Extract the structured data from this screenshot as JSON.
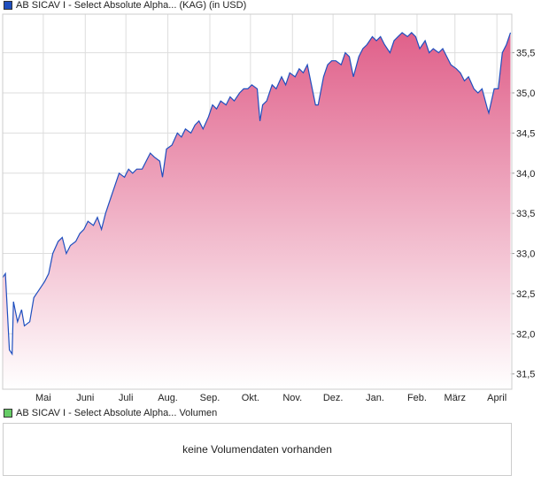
{
  "price_legend": {
    "label": "AB SICAV I - Select Absolute Alpha... (KAG) (in USD)",
    "color": "#1f4fbf"
  },
  "volume_legend": {
    "label": "AB SICAV I - Select Absolute Alpha... Volumen",
    "color": "#66cc66"
  },
  "volume_message": "keine Volumendaten vorhanden",
  "chart_data": {
    "type": "area",
    "title": "AB SICAV I - Select Absolute Alpha... (KAG) (in USD)",
    "xlabel": "",
    "ylabel": "",
    "xlim": [
      0,
      376
    ],
    "ylim": [
      31.31,
      35.98
    ],
    "grid": true,
    "x_ticks": [
      {
        "day": 30,
        "label": "Mai"
      },
      {
        "day": 61,
        "label": "Juni"
      },
      {
        "day": 91,
        "label": "Juli"
      },
      {
        "day": 122,
        "label": "Aug."
      },
      {
        "day": 153,
        "label": "Sep."
      },
      {
        "day": 183,
        "label": "Okt."
      },
      {
        "day": 214,
        "label": "Nov."
      },
      {
        "day": 244,
        "label": "Dez."
      },
      {
        "day": 275,
        "label": "Jan."
      },
      {
        "day": 306,
        "label": "Feb."
      },
      {
        "day": 334,
        "label": "März"
      },
      {
        "day": 365,
        "label": "April"
      }
    ],
    "y_ticks": [
      {
        "value": 31.5,
        "label": "31,5"
      },
      {
        "value": 32.0,
        "label": "32,0"
      },
      {
        "value": 32.5,
        "label": "32,5"
      },
      {
        "value": 33.0,
        "label": "33,0"
      },
      {
        "value": 33.5,
        "label": "33,5"
      },
      {
        "value": 34.0,
        "label": "34,0"
      },
      {
        "value": 34.5,
        "label": "34,5"
      },
      {
        "value": 35.0,
        "label": "35,0"
      },
      {
        "value": 35.5,
        "label": "35,5"
      }
    ],
    "x": [
      0,
      2,
      5,
      7,
      8,
      11,
      14,
      16,
      20,
      23,
      27,
      31,
      34,
      37,
      41,
      44,
      47,
      50,
      54,
      57,
      60,
      63,
      67,
      70,
      73,
      76,
      80,
      83,
      86,
      90,
      93,
      96,
      99,
      103,
      106,
      109,
      112,
      116,
      118,
      121,
      125,
      129,
      132,
      135,
      139,
      142,
      145,
      148,
      152,
      155,
      158,
      161,
      165,
      168,
      171,
      175,
      178,
      181,
      184,
      188,
      190,
      192,
      195,
      199,
      202,
      206,
      209,
      212,
      216,
      219,
      222,
      225,
      228,
      231,
      233,
      237,
      240,
      243,
      246,
      250,
      253,
      256,
      259,
      263,
      266,
      269,
      273,
      276,
      279,
      282,
      286,
      289,
      292,
      295,
      299,
      302,
      305,
      308,
      312,
      315,
      318,
      322,
      325,
      328,
      331,
      335,
      338,
      341,
      344,
      348,
      351,
      354,
      358,
      359,
      363,
      366,
      369,
      372,
      375
    ],
    "values": [
      32.7,
      32.75,
      31.8,
      31.75,
      32.4,
      32.15,
      32.3,
      32.1,
      32.15,
      32.45,
      32.55,
      32.65,
      32.75,
      33.0,
      33.15,
      33.2,
      33.0,
      33.1,
      33.15,
      33.25,
      33.3,
      33.4,
      33.35,
      33.45,
      33.3,
      33.5,
      33.7,
      33.85,
      34.0,
      33.95,
      34.05,
      34.0,
      34.05,
      34.05,
      34.15,
      34.25,
      34.2,
      34.15,
      33.95,
      34.3,
      34.35,
      34.5,
      34.45,
      34.55,
      34.5,
      34.6,
      34.65,
      34.55,
      34.7,
      34.85,
      34.8,
      34.9,
      34.85,
      34.95,
      34.9,
      35.0,
      35.05,
      35.05,
      35.1,
      35.05,
      34.65,
      34.85,
      34.9,
      35.1,
      35.05,
      35.2,
      35.1,
      35.25,
      35.2,
      35.3,
      35.25,
      35.35,
      35.1,
      34.85,
      34.85,
      35.2,
      35.35,
      35.4,
      35.4,
      35.35,
      35.5,
      35.45,
      35.2,
      35.45,
      35.55,
      35.6,
      35.7,
      35.65,
      35.7,
      35.6,
      35.5,
      35.65,
      35.7,
      35.75,
      35.7,
      35.75,
      35.7,
      35.55,
      35.65,
      35.5,
      35.55,
      35.5,
      35.55,
      35.45,
      35.35,
      35.3,
      35.25,
      35.15,
      35.2,
      35.05,
      35.0,
      35.05,
      34.8,
      34.75,
      35.05,
      35.05,
      35.5,
      35.6,
      35.75
    ],
    "line_color": "#1f4fbf",
    "fill_top": "#e0608a",
    "fill_bottom": "#ffffff"
  }
}
